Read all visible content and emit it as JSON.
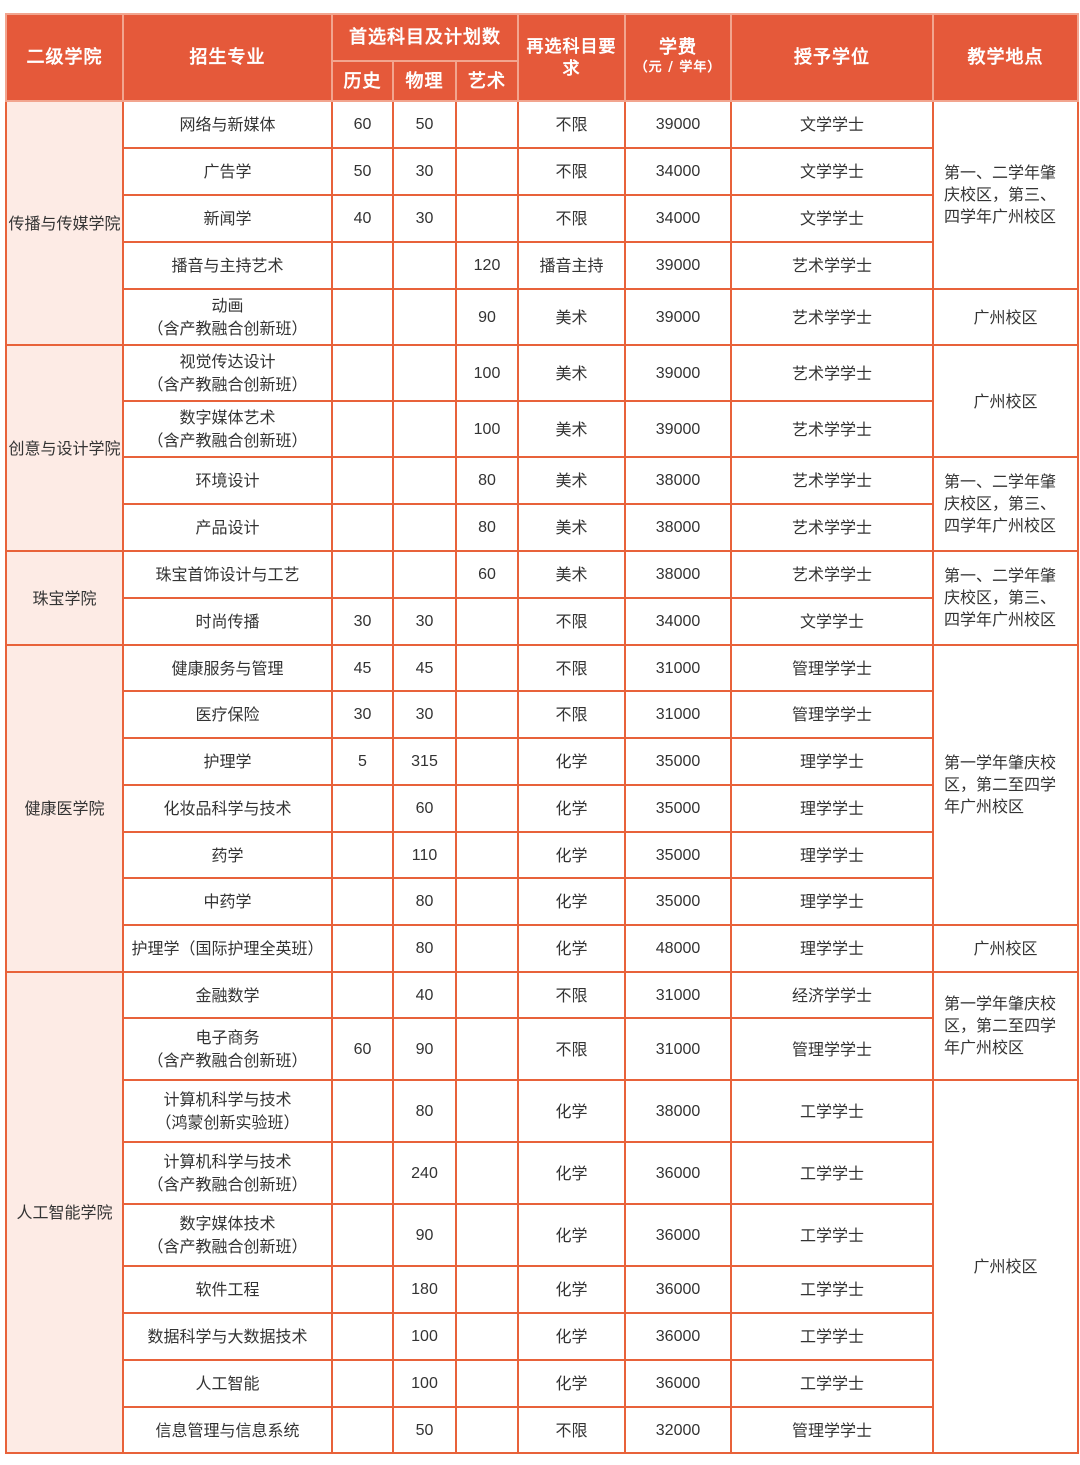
{
  "colors": {
    "header_bg": "#e5593a",
    "border": "#e8623a",
    "college_bg": "#fdebe5"
  },
  "header": {
    "college": "二级学院",
    "major": "招生专业",
    "first_subject": "首选科目及计划数",
    "history": "历史",
    "physics": "物理",
    "art": "艺术",
    "reselect": "再选科目要求",
    "fee": "学费",
    "fee_unit": "（元 / 学年）",
    "degree": "授予学位",
    "location": "教学地点"
  },
  "colleges": [
    {
      "name": "传播与传媒学院",
      "majors": [
        {
          "name": [
            "网络与新媒体"
          ],
          "history": "60",
          "physics": "50",
          "art": "",
          "req": "不限",
          "fee": "39000",
          "degree": "文学学士"
        },
        {
          "name": [
            "广告学"
          ],
          "history": "50",
          "physics": "30",
          "art": "",
          "req": "不限",
          "fee": "34000",
          "degree": "文学学士"
        },
        {
          "name": [
            "新闻学"
          ],
          "history": "40",
          "physics": "30",
          "art": "",
          "req": "不限",
          "fee": "34000",
          "degree": "文学学士"
        },
        {
          "name": [
            "播音与主持艺术"
          ],
          "history": "",
          "physics": "",
          "art": "120",
          "req": "播音主持",
          "fee": "39000",
          "degree": "艺术学学士"
        },
        {
          "name": [
            "动画",
            "（含产教融合创新班）"
          ],
          "history": "",
          "physics": "",
          "art": "90",
          "req": "美术",
          "fee": "39000",
          "degree": "艺术学学士"
        }
      ]
    },
    {
      "name": "创意与设计学院",
      "majors": [
        {
          "name": [
            "视觉传达设计",
            "（含产教融合创新班）"
          ],
          "history": "",
          "physics": "",
          "art": "100",
          "req": "美术",
          "fee": "39000",
          "degree": "艺术学学士"
        },
        {
          "name": [
            "数字媒体艺术",
            "（含产教融合创新班）"
          ],
          "history": "",
          "physics": "",
          "art": "100",
          "req": "美术",
          "fee": "39000",
          "degree": "艺术学学士"
        },
        {
          "name": [
            "环境设计"
          ],
          "history": "",
          "physics": "",
          "art": "80",
          "req": "美术",
          "fee": "38000",
          "degree": "艺术学学士"
        },
        {
          "name": [
            "产品设计"
          ],
          "history": "",
          "physics": "",
          "art": "80",
          "req": "美术",
          "fee": "38000",
          "degree": "艺术学学士"
        }
      ]
    },
    {
      "name": "珠宝学院",
      "majors": [
        {
          "name": [
            "珠宝首饰设计与工艺"
          ],
          "history": "",
          "physics": "",
          "art": "60",
          "req": "美术",
          "fee": "38000",
          "degree": "艺术学学士"
        },
        {
          "name": [
            "时尚传播"
          ],
          "history": "30",
          "physics": "30",
          "art": "",
          "req": "不限",
          "fee": "34000",
          "degree": "文学学士"
        }
      ]
    },
    {
      "name": "健康医学院",
      "majors": [
        {
          "name": [
            "健康服务与管理"
          ],
          "history": "45",
          "physics": "45",
          "art": "",
          "req": "不限",
          "fee": "31000",
          "degree": "管理学学士"
        },
        {
          "name": [
            "医疗保险"
          ],
          "history": "30",
          "physics": "30",
          "art": "",
          "req": "不限",
          "fee": "31000",
          "degree": "管理学学士"
        },
        {
          "name": [
            "护理学"
          ],
          "history": "5",
          "physics": "315",
          "art": "",
          "req": "化学",
          "fee": "35000",
          "degree": "理学学士"
        },
        {
          "name": [
            "化妆品科学与技术"
          ],
          "history": "",
          "physics": "60",
          "art": "",
          "req": "化学",
          "fee": "35000",
          "degree": "理学学士"
        },
        {
          "name": [
            "药学"
          ],
          "history": "",
          "physics": "110",
          "art": "",
          "req": "化学",
          "fee": "35000",
          "degree": "理学学士"
        },
        {
          "name": [
            "中药学"
          ],
          "history": "",
          "physics": "80",
          "art": "",
          "req": "化学",
          "fee": "35000",
          "degree": "理学学士"
        },
        {
          "name": [
            "护理学（国际护理全英班）"
          ],
          "history": "",
          "physics": "80",
          "art": "",
          "req": "化学",
          "fee": "48000",
          "degree": "理学学士"
        }
      ]
    },
    {
      "name": "人工智能学院",
      "majors": [
        {
          "name": [
            "金融数学"
          ],
          "history": "",
          "physics": "40",
          "art": "",
          "req": "不限",
          "fee": "31000",
          "degree": "经济学学士"
        },
        {
          "name": [
            "电子商务",
            "（含产教融合创新班）"
          ],
          "history": "60",
          "physics": "90",
          "art": "",
          "req": "不限",
          "fee": "31000",
          "degree": "管理学学士"
        },
        {
          "name": [
            "计算机科学与技术",
            "（鸿蒙创新实验班）"
          ],
          "history": "",
          "physics": "80",
          "art": "",
          "req": "化学",
          "fee": "38000",
          "degree": "工学学士"
        },
        {
          "name": [
            "计算机科学与技术",
            "（含产教融合创新班）"
          ],
          "history": "",
          "physics": "240",
          "art": "",
          "req": "化学",
          "fee": "36000",
          "degree": "工学学士"
        },
        {
          "name": [
            "数字媒体技术",
            "（含产教融合创新班）"
          ],
          "history": "",
          "physics": "90",
          "art": "",
          "req": "化学",
          "fee": "36000",
          "degree": "工学学士"
        },
        {
          "name": [
            "软件工程"
          ],
          "history": "",
          "physics": "180",
          "art": "",
          "req": "化学",
          "fee": "36000",
          "degree": "工学学士"
        },
        {
          "name": [
            "数据科学与大数据技术"
          ],
          "history": "",
          "physics": "100",
          "art": "",
          "req": "化学",
          "fee": "36000",
          "degree": "工学学士"
        },
        {
          "name": [
            "人工智能"
          ],
          "history": "",
          "physics": "100",
          "art": "",
          "req": "化学",
          "fee": "36000",
          "degree": "工学学士"
        },
        {
          "name": [
            "信息管理与信息系统"
          ],
          "history": "",
          "physics": "50",
          "art": "",
          "req": "不限",
          "fee": "32000",
          "degree": "管理学学士"
        }
      ]
    }
  ],
  "locations": [
    {
      "text": "第一、二学年肇庆校区，第三、四学年广州校区",
      "rows": 4
    },
    {
      "text": "广州校区",
      "rows": 1
    },
    {
      "text": "广州校区",
      "rows": 2
    },
    {
      "text": "第一、二学年肇庆校区，第三、四学年广州校区",
      "rows": 2
    },
    {
      "text": "第一、二学年肇庆校区，第三、四学年广州校区",
      "rows": 2
    },
    {
      "text": "第一学年肇庆校区，第二至四学年广州校区",
      "rows": 6
    },
    {
      "text": "广州校区",
      "rows": 1
    },
    {
      "text": "第一学年肇庆校区，第二至四学年广州校区",
      "rows": 2
    },
    {
      "text": "广州校区",
      "rows": 7
    }
  ]
}
